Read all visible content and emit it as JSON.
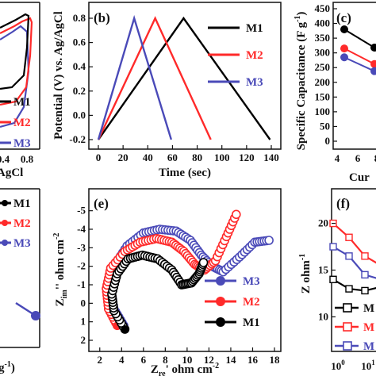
{
  "colors": {
    "M1": "#000000",
    "M2": "#ff2a2a",
    "M3": "#4a4ab8"
  },
  "chart_data": [
    {
      "panel": "(a)",
      "type": "line",
      "xlabel_fragment": "AgCl",
      "xticks": [
        "0.4",
        "0.8"
      ],
      "legend": [
        "M1",
        "M2",
        "M3"
      ],
      "series": [
        {
          "name": "M1",
          "values": "cyclic voltammogram (partially visible)"
        },
        {
          "name": "M2",
          "values": "cyclic voltammogram (partially visible)"
        },
        {
          "name": "M3",
          "values": "cyclic voltammogram (partially visible)"
        }
      ]
    },
    {
      "panel": "(b)",
      "type": "line",
      "xlabel": "Time (sec)",
      "ylabel": "Potential (V) vs. Ag/AgCl",
      "xlim": [
        0,
        140
      ],
      "ylim": [
        -0.2,
        0.8
      ],
      "xticks": [
        "0",
        "20",
        "40",
        "60",
        "80",
        "100",
        "120",
        "140"
      ],
      "yticks": [
        "-0.2",
        "0.0",
        "0.2",
        "0.4",
        "0.6",
        "0.8"
      ],
      "legend": [
        "M1",
        "M2",
        "M3"
      ],
      "series": [
        {
          "name": "M1",
          "x": [
            0,
            69,
            139
          ],
          "y": [
            -0.2,
            0.8,
            -0.2
          ]
        },
        {
          "name": "M2",
          "x": [
            0,
            46,
            91
          ],
          "y": [
            -0.2,
            0.8,
            -0.2
          ]
        },
        {
          "name": "M3",
          "x": [
            0,
            29,
            59
          ],
          "y": [
            -0.2,
            0.8,
            -0.2
          ]
        }
      ]
    },
    {
      "panel": "(c)",
      "type": "line",
      "ylabel": "Specific Capacitance (F g-1)",
      "xlabel_fragment": "Cur",
      "xlim": [
        4,
        10
      ],
      "ylim": [
        0,
        450
      ],
      "xticks": [
        "4",
        "6",
        "8"
      ],
      "yticks": [
        "0",
        "50",
        "100",
        "150",
        "200",
        "250",
        "300",
        "350",
        "400",
        "450"
      ],
      "series": [
        {
          "name": "M1",
          "x": [
            5,
            7.5
          ],
          "y": [
            380,
            318
          ]
        },
        {
          "name": "M2",
          "x": [
            5,
            7.5
          ],
          "y": [
            315,
            262
          ]
        },
        {
          "name": "M3",
          "x": [
            5,
            7.5
          ],
          "y": [
            285,
            238
          ]
        }
      ]
    },
    {
      "panel": "(d)",
      "type": "line",
      "xlabel_fragment": "g-1)",
      "legend": [
        "M1",
        "M2",
        "M3"
      ],
      "series": [
        {
          "name": "M3",
          "values": "partially visible"
        }
      ]
    },
    {
      "panel": "(e)",
      "type": "scatter",
      "xlabel": "Zre' ohm cm-2",
      "ylabel": "Zim'' ohm cm-2",
      "xlim": [
        1,
        18
      ],
      "ylim": [
        2,
        -5.5
      ],
      "xticks": [
        "2",
        "4",
        "6",
        "8",
        "10",
        "12",
        "14",
        "16",
        "18"
      ],
      "yticks": [
        "-5",
        "-4",
        "-3",
        "-2",
        "-1",
        "0",
        "1",
        "2"
      ],
      "legend": [
        "M3",
        "M2",
        "M1"
      ],
      "series": [
        {
          "name": "M3",
          "x": [
            4.2,
            3.3,
            3.0,
            3.3,
            4.5,
            6.0,
            7.5,
            9.0,
            10.3,
            11.3,
            12.3,
            13.3,
            14.8,
            16.2,
            17.5
          ],
          "y": [
            1.2,
            0.3,
            -0.8,
            -2.0,
            -3.1,
            -3.8,
            -4.0,
            -3.9,
            -3.4,
            -2.6,
            -2.0,
            -1.7,
            -2.5,
            -3.3,
            -3.4
          ]
        },
        {
          "name": "M2",
          "x": [
            3.6,
            2.8,
            2.6,
            3.0,
            4.3,
            5.7,
            7.2,
            8.6,
            9.7,
            10.7,
            11.6,
            12.6,
            13.6,
            14.5
          ],
          "y": [
            1.2,
            0.3,
            -0.8,
            -1.9,
            -2.8,
            -3.3,
            -3.5,
            -3.3,
            -2.8,
            -2.1,
            -1.8,
            -2.3,
            -3.6,
            -4.8
          ]
        },
        {
          "name": "M1",
          "x": [
            4.3,
            3.3,
            3.1,
            3.6,
            4.6,
            5.9,
            7.3,
            8.6,
            9.5,
            10.4,
            11.1,
            11.5
          ],
          "y": [
            1.4,
            0.4,
            -0.5,
            -1.6,
            -2.4,
            -2.6,
            -2.4,
            -1.8,
            -1.0,
            -1.1,
            -1.6,
            -2.2
          ]
        }
      ]
    },
    {
      "panel": "(f)",
      "type": "line",
      "ylabel_fragment": "Z ohm-1",
      "yticks": [
        "10",
        "15",
        "20"
      ],
      "xticks": [
        "10",
        "10"
      ],
      "x_tick_exponents": [
        "0",
        "1"
      ],
      "legend": [
        "M",
        "M",
        "M"
      ],
      "series": [
        {
          "name": "M1",
          "values": "partially visible"
        },
        {
          "name": "M2",
          "values": "partially visible"
        },
        {
          "name": "M3",
          "values": "partially visible"
        }
      ]
    }
  ]
}
